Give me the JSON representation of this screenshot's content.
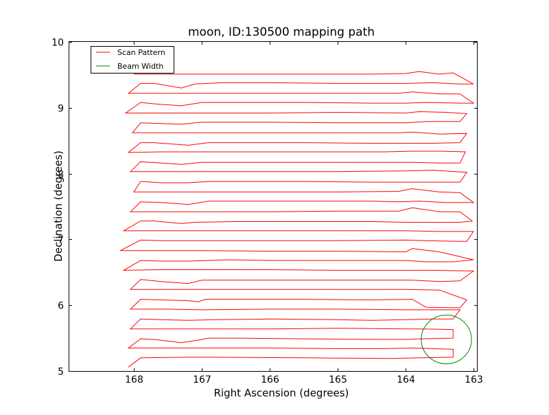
{
  "chart_data": {
    "type": "line",
    "title": "moon, ID:130500 mapping path",
    "xlabel": "Right Ascension (degrees)",
    "ylabel": "Declination (degrees)",
    "xlim": [
      168.95,
      162.95
    ],
    "ylim": [
      5,
      10
    ],
    "xticks": [
      168,
      167,
      166,
      165,
      164,
      163
    ],
    "yticks": [
      5,
      6,
      7,
      8,
      9,
      10
    ],
    "grid": false,
    "legend": {
      "placement": "top-left",
      "entries": [
        {
          "label": "Scan Pattern",
          "color": "#ff0000"
        },
        {
          "label": "Beam Width",
          "color": "#008000"
        }
      ]
    },
    "series": [
      {
        "name": "Scan Pattern",
        "color": "#ff0000",
        "style": "line",
        "points": [
          [
            168.08,
            5.06
          ],
          [
            167.9,
            5.2
          ],
          [
            167.2,
            5.21
          ],
          [
            166.8,
            5.21
          ],
          [
            165.5,
            5.2
          ],
          [
            164.2,
            5.19
          ],
          [
            163.8,
            5.2
          ],
          [
            163.3,
            5.21
          ],
          [
            163.3,
            5.33
          ],
          [
            163.6,
            5.34
          ],
          [
            163.9,
            5.35
          ],
          [
            164.3,
            5.34
          ],
          [
            165.0,
            5.34
          ],
          [
            166.0,
            5.35
          ],
          [
            167.0,
            5.35
          ],
          [
            167.5,
            5.35
          ],
          [
            168.08,
            5.35
          ],
          [
            167.9,
            5.49
          ],
          [
            167.7,
            5.48
          ],
          [
            167.3,
            5.43
          ],
          [
            167.05,
            5.47
          ],
          [
            166.9,
            5.5
          ],
          [
            166.5,
            5.5
          ],
          [
            165.5,
            5.49
          ],
          [
            164.5,
            5.48
          ],
          [
            164.0,
            5.48
          ],
          [
            163.8,
            5.49
          ],
          [
            163.3,
            5.5
          ],
          [
            163.3,
            5.63
          ],
          [
            163.8,
            5.64
          ],
          [
            164.0,
            5.64
          ],
          [
            165.0,
            5.65
          ],
          [
            166.0,
            5.64
          ],
          [
            167.0,
            5.64
          ],
          [
            167.6,
            5.64
          ],
          [
            168.05,
            5.64
          ],
          [
            167.9,
            5.79
          ],
          [
            167.6,
            5.78
          ],
          [
            167.2,
            5.77
          ],
          [
            166.8,
            5.78
          ],
          [
            166.0,
            5.79
          ],
          [
            165.0,
            5.78
          ],
          [
            164.5,
            5.77
          ],
          [
            164.0,
            5.78
          ],
          [
            163.6,
            5.79
          ],
          [
            163.3,
            5.79
          ],
          [
            163.2,
            5.93
          ],
          [
            163.6,
            5.93
          ],
          [
            164.0,
            5.93
          ],
          [
            165.0,
            5.94
          ],
          [
            166.0,
            5.94
          ],
          [
            167.0,
            5.93
          ],
          [
            167.5,
            5.94
          ],
          [
            168.05,
            5.94
          ],
          [
            167.9,
            6.09
          ],
          [
            167.6,
            6.08
          ],
          [
            167.2,
            6.07
          ],
          [
            167.05,
            6.05
          ],
          [
            166.95,
            6.09
          ],
          [
            166.5,
            6.09
          ],
          [
            165.5,
            6.09
          ],
          [
            164.5,
            6.08
          ],
          [
            163.9,
            6.09
          ],
          [
            163.7,
            5.97
          ],
          [
            163.2,
            5.96
          ],
          [
            163.1,
            6.08
          ],
          [
            163.5,
            6.23
          ],
          [
            164.0,
            6.24
          ],
          [
            165.0,
            6.24
          ],
          [
            166.0,
            6.24
          ],
          [
            167.0,
            6.24
          ],
          [
            167.5,
            6.24
          ],
          [
            168.05,
            6.24
          ],
          [
            167.9,
            6.39
          ],
          [
            167.6,
            6.36
          ],
          [
            167.2,
            6.33
          ],
          [
            167.0,
            6.38
          ],
          [
            166.5,
            6.38
          ],
          [
            165.5,
            6.38
          ],
          [
            164.5,
            6.38
          ],
          [
            163.9,
            6.38
          ],
          [
            163.5,
            6.36
          ],
          [
            163.2,
            6.37
          ],
          [
            163.0,
            6.52
          ],
          [
            163.6,
            6.53
          ],
          [
            164.0,
            6.53
          ],
          [
            165.0,
            6.53
          ],
          [
            166.0,
            6.54
          ],
          [
            167.0,
            6.54
          ],
          [
            167.6,
            6.54
          ],
          [
            168.15,
            6.53
          ],
          [
            167.9,
            6.68
          ],
          [
            167.6,
            6.67
          ],
          [
            167.2,
            6.67
          ],
          [
            166.9,
            6.68
          ],
          [
            166.6,
            6.69
          ],
          [
            166.0,
            6.68
          ],
          [
            165.0,
            6.68
          ],
          [
            164.0,
            6.68
          ],
          [
            163.7,
            6.66
          ],
          [
            163.3,
            6.66
          ],
          [
            163.0,
            6.69
          ],
          [
            163.5,
            6.81
          ],
          [
            163.9,
            6.86
          ],
          [
            164.0,
            6.81
          ],
          [
            165.0,
            6.82
          ],
          [
            166.0,
            6.82
          ],
          [
            167.0,
            6.83
          ],
          [
            167.6,
            6.83
          ],
          [
            168.2,
            6.83
          ],
          [
            167.9,
            6.99
          ],
          [
            167.6,
            6.98
          ],
          [
            167.0,
            6.98
          ],
          [
            166.0,
            6.98
          ],
          [
            165.0,
            6.98
          ],
          [
            164.0,
            6.99
          ],
          [
            163.7,
            6.98
          ],
          [
            163.2,
            6.97
          ],
          [
            163.1,
            6.97
          ],
          [
            163.0,
            7.12
          ],
          [
            163.5,
            7.12
          ],
          [
            164.0,
            7.13
          ],
          [
            165.0,
            7.13
          ],
          [
            166.0,
            7.13
          ],
          [
            167.0,
            7.13
          ],
          [
            167.6,
            7.13
          ],
          [
            168.15,
            7.13
          ],
          [
            167.9,
            7.28
          ],
          [
            167.7,
            7.28
          ],
          [
            167.3,
            7.24
          ],
          [
            167.1,
            7.26
          ],
          [
            166.5,
            7.27
          ],
          [
            165.5,
            7.27
          ],
          [
            164.5,
            7.27
          ],
          [
            164.0,
            7.26
          ],
          [
            163.6,
            7.26
          ],
          [
            163.2,
            7.26
          ],
          [
            163.02,
            7.28
          ],
          [
            163.2,
            7.42
          ],
          [
            163.5,
            7.42
          ],
          [
            163.9,
            7.48
          ],
          [
            164.1,
            7.43
          ],
          [
            165.0,
            7.43
          ],
          [
            166.0,
            7.42
          ],
          [
            167.0,
            7.42
          ],
          [
            167.6,
            7.42
          ],
          [
            168.05,
            7.42
          ],
          [
            167.9,
            7.57
          ],
          [
            167.6,
            7.56
          ],
          [
            167.2,
            7.53
          ],
          [
            166.9,
            7.58
          ],
          [
            166.5,
            7.58
          ],
          [
            165.5,
            7.58
          ],
          [
            164.5,
            7.58
          ],
          [
            164.1,
            7.57
          ],
          [
            163.8,
            7.58
          ],
          [
            163.4,
            7.56
          ],
          [
            163.0,
            7.56
          ],
          [
            163.2,
            7.71
          ],
          [
            163.5,
            7.72
          ],
          [
            163.9,
            7.77
          ],
          [
            164.1,
            7.73
          ],
          [
            165.0,
            7.72
          ],
          [
            166.0,
            7.72
          ],
          [
            167.0,
            7.72
          ],
          [
            167.6,
            7.72
          ],
          [
            168.0,
            7.72
          ],
          [
            167.9,
            7.88
          ],
          [
            167.6,
            7.86
          ],
          [
            167.2,
            7.86
          ],
          [
            166.9,
            7.88
          ],
          [
            166.5,
            7.88
          ],
          [
            165.5,
            7.88
          ],
          [
            164.5,
            7.87
          ],
          [
            164.0,
            7.87
          ],
          [
            163.6,
            7.87
          ],
          [
            163.2,
            7.87
          ],
          [
            163.1,
            8.02
          ],
          [
            163.6,
            8.05
          ],
          [
            164.0,
            8.04
          ],
          [
            165.0,
            8.03
          ],
          [
            166.0,
            8.03
          ],
          [
            167.0,
            8.03
          ],
          [
            167.6,
            8.03
          ],
          [
            168.05,
            8.03
          ],
          [
            167.9,
            8.18
          ],
          [
            167.6,
            8.16
          ],
          [
            167.3,
            8.14
          ],
          [
            167.0,
            8.17
          ],
          [
            166.5,
            8.17
          ],
          [
            165.5,
            8.17
          ],
          [
            164.5,
            8.17
          ],
          [
            163.9,
            8.17
          ],
          [
            163.5,
            8.16
          ],
          [
            163.2,
            8.16
          ],
          [
            163.12,
            8.33
          ],
          [
            163.5,
            8.34
          ],
          [
            163.9,
            8.34
          ],
          [
            164.3,
            8.33
          ],
          [
            165.0,
            8.33
          ],
          [
            166.0,
            8.33
          ],
          [
            167.0,
            8.33
          ],
          [
            167.6,
            8.33
          ],
          [
            168.08,
            8.32
          ],
          [
            167.9,
            8.47
          ],
          [
            167.7,
            8.47
          ],
          [
            167.2,
            8.43
          ],
          [
            166.9,
            8.47
          ],
          [
            166.5,
            8.47
          ],
          [
            165.5,
            8.47
          ],
          [
            164.5,
            8.46
          ],
          [
            163.9,
            8.46
          ],
          [
            163.6,
            8.46
          ],
          [
            163.2,
            8.47
          ],
          [
            163.1,
            8.61
          ],
          [
            163.5,
            8.6
          ],
          [
            163.9,
            8.63
          ],
          [
            164.1,
            8.62
          ],
          [
            165.0,
            8.62
          ],
          [
            166.0,
            8.62
          ],
          [
            167.0,
            8.62
          ],
          [
            167.6,
            8.62
          ],
          [
            168.02,
            8.62
          ],
          [
            167.9,
            8.77
          ],
          [
            167.6,
            8.76
          ],
          [
            167.3,
            8.75
          ],
          [
            167.0,
            8.78
          ],
          [
            166.7,
            8.78
          ],
          [
            166.0,
            8.78
          ],
          [
            165.0,
            8.77
          ],
          [
            164.5,
            8.77
          ],
          [
            164.0,
            8.77
          ],
          [
            163.7,
            8.79
          ],
          [
            163.2,
            8.79
          ],
          [
            163.1,
            8.91
          ],
          [
            163.4,
            8.93
          ],
          [
            163.8,
            8.94
          ],
          [
            164.0,
            8.92
          ],
          [
            165.0,
            8.93
          ],
          [
            166.0,
            8.92
          ],
          [
            167.0,
            8.92
          ],
          [
            167.6,
            8.92
          ],
          [
            168.12,
            8.92
          ],
          [
            167.9,
            9.08
          ],
          [
            167.6,
            9.05
          ],
          [
            167.3,
            9.03
          ],
          [
            167.0,
            9.08
          ],
          [
            166.5,
            9.08
          ],
          [
            165.5,
            9.08
          ],
          [
            164.5,
            9.07
          ],
          [
            164.0,
            9.07
          ],
          [
            163.7,
            9.08
          ],
          [
            163.2,
            9.07
          ],
          [
            163.0,
            9.07
          ],
          [
            163.2,
            9.21
          ],
          [
            163.5,
            9.21
          ],
          [
            163.9,
            9.24
          ],
          [
            164.1,
            9.22
          ],
          [
            165.0,
            9.22
          ],
          [
            166.0,
            9.22
          ],
          [
            167.0,
            9.22
          ],
          [
            167.6,
            9.22
          ],
          [
            168.08,
            9.22
          ],
          [
            167.9,
            9.37
          ],
          [
            167.7,
            9.37
          ],
          [
            167.3,
            9.3
          ],
          [
            167.1,
            9.36
          ],
          [
            166.7,
            9.38
          ],
          [
            166.0,
            9.38
          ],
          [
            165.0,
            9.37
          ],
          [
            164.5,
            9.37
          ],
          [
            164.0,
            9.37
          ],
          [
            163.6,
            9.38
          ],
          [
            163.2,
            9.36
          ],
          [
            163.0,
            9.36
          ],
          [
            163.3,
            9.53
          ],
          [
            163.5,
            9.51
          ],
          [
            163.8,
            9.55
          ],
          [
            164.0,
            9.52
          ],
          [
            164.5,
            9.51
          ],
          [
            165.0,
            9.51
          ],
          [
            166.0,
            9.51
          ],
          [
            167.0,
            9.51
          ],
          [
            168.0,
            9.51
          ]
        ]
      },
      {
        "name": "Beam Width",
        "color": "#008000",
        "style": "circle",
        "center": [
          163.4,
          5.48
        ],
        "radius": 0.37
      }
    ]
  }
}
